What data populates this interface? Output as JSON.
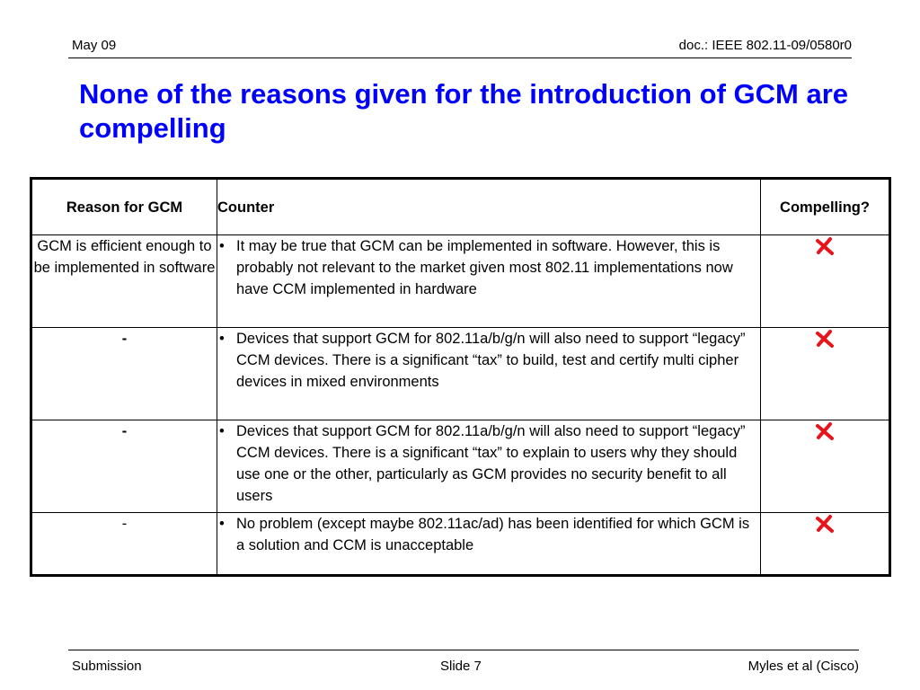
{
  "header": {
    "date": "May 09",
    "doc": "doc.: IEEE 802.11-09/0580r0"
  },
  "title": "None of the reasons given for the introduction of GCM are compelling",
  "table": {
    "headers": [
      "Reason for GCM",
      "Counter",
      "Compelling?"
    ],
    "rows": [
      {
        "reason": "GCM is efficient enough to be implemented in software",
        "bullet": "•",
        "counter": "It may be true that  GCM can be implemented in software. However, this is probably not relevant to the market given most 802.11 implementations now have CCM implemented in hardware",
        "compelling_icon": "red-x-icon"
      },
      {
        "reason": "-",
        "bullet": "•",
        "counter": "Devices that support GCM for 802.11a/b/g/n will also need to support “legacy” CCM devices. There is a significant “tax” to build, test and certify multi cipher devices in mixed environments",
        "compelling_icon": "red-x-icon"
      },
      {
        "reason": "-",
        "bullet": "•",
        "counter": "Devices that support GCM for 802.11a/b/g/n will also need to support “legacy” CCM devices. There is a significant “tax” to explain to users why they should use one or the other, particularly as GCM provides  no security benefit to all users",
        "compelling_icon": "red-x-icon"
      },
      {
        "reason": "-",
        "bullet": "•",
        "counter": "No problem (except maybe 802.11ac/ad) has been identified for which GCM is a solution and CCM is unacceptable",
        "compelling_icon": "red-x-icon"
      }
    ]
  },
  "footer": {
    "left": "Submission",
    "slide": "Slide 7",
    "author": "Myles et al (Cisco)"
  },
  "colors": {
    "title": "#0000ff",
    "x_mark": "#e8131b"
  }
}
